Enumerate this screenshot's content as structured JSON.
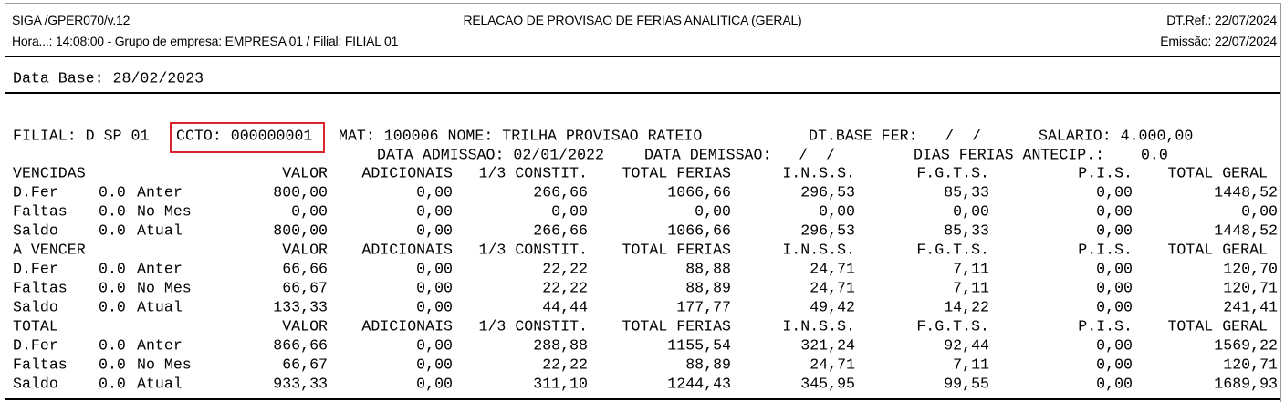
{
  "header": {
    "program": "SIGA /GPER070/v.12",
    "title": "RELACAO DE PROVISAO DE FERIAS ANALITICA (GERAL)",
    "ref_date": "DT.Ref.: 22/07/2024",
    "info": "Hora...: 14:08:00 - Grupo de empresa: EMPRESA 01 / Filial: FILIAL 01",
    "emission": "Emissão: 22/07/2024"
  },
  "data_base": "Data Base: 28/02/2023",
  "employee": {
    "line1": [
      "FILIAL: D SP 01",
      "CCTO: 000000001",
      "MAT: 100006 NOME: TRILHA PROVISAO RATEIO",
      "DT.BASE FER:   /  /",
      "SALARIO: 4.000,00"
    ],
    "line2": [
      "DATA ADMISSAO: 02/01/2022",
      "DATA DEMISSAO:   /  /",
      "DIAS FERIAS ANTECIP.:    0.0"
    ]
  },
  "columns": [
    "VALOR",
    "ADICIONAIS",
    "1/3 CONSTIT.",
    "TOTAL FERIAS",
    "I.N.S.S.",
    "F.G.T.S.",
    "P.I.S.",
    "TOTAL GERAL"
  ],
  "sections": [
    {
      "title": "VENCIDAS",
      "rows": [
        [
          "D.Fer",
          "0.0",
          "Anter",
          "800,00",
          "0,00",
          "266,66",
          "1066,66",
          "296,53",
          "85,33",
          "0,00",
          "1448,52"
        ],
        [
          "Faltas",
          "0.0",
          "No Mes",
          "0,00",
          "0,00",
          "0,00",
          "0,00",
          "0,00",
          "0,00",
          "0,00",
          "0,00"
        ],
        [
          "Saldo",
          "0.0",
          "Atual",
          "800,00",
          "0,00",
          "266,66",
          "1066,66",
          "296,53",
          "85,33",
          "0,00",
          "1448,52"
        ]
      ]
    },
    {
      "title": "A VENCER",
      "rows": [
        [
          "D.Fer",
          "0.0",
          "Anter",
          "66,66",
          "0,00",
          "22,22",
          "88,88",
          "24,71",
          "7,11",
          "0,00",
          "120,70"
        ],
        [
          "Faltas",
          "0.0",
          "No Mes",
          "66,67",
          "0,00",
          "22,22",
          "88,89",
          "24,71",
          "7,11",
          "0,00",
          "120,71"
        ],
        [
          "Saldo",
          "0.0",
          "Atual",
          "133,33",
          "0,00",
          "44,44",
          "177,77",
          "49,42",
          "14,22",
          "0,00",
          "241,41"
        ]
      ]
    },
    {
      "title": "TOTAL",
      "rows": [
        [
          "D.Fer",
          "0.0",
          "Anter",
          "866,66",
          "0,00",
          "288,88",
          "1155,54",
          "321,24",
          "92,44",
          "0,00",
          "1569,22"
        ],
        [
          "Faltas",
          "0.0",
          "No Mes",
          "66,67",
          "0,00",
          "22,22",
          "88,89",
          "24,71",
          "7,11",
          "0,00",
          "120,71"
        ],
        [
          "Saldo",
          "0.0",
          "Atual",
          "933,33",
          "0,00",
          "311,10",
          "1244,43",
          "345,95",
          "99,55",
          "0,00",
          "1689,93"
        ]
      ]
    }
  ]
}
